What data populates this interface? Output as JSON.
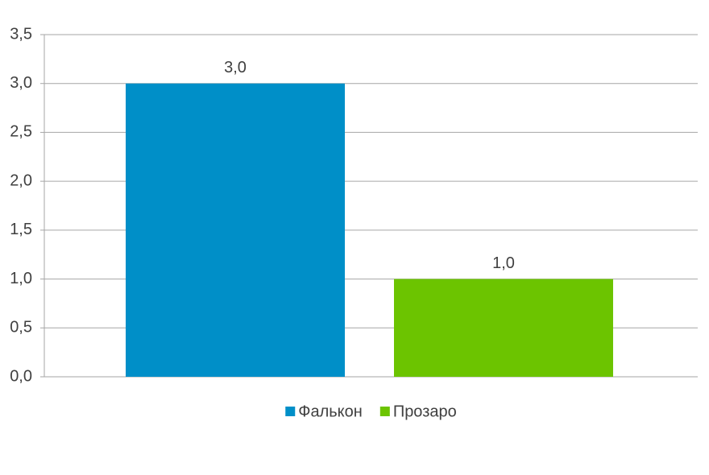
{
  "chart_data": {
    "type": "bar",
    "categories": [
      null
    ],
    "series": [
      {
        "name": "Фалькон",
        "color": "#008fc8",
        "values": [
          3.0
        ],
        "value_labels": [
          "3,0"
        ]
      },
      {
        "name": "Прозаро",
        "color": "#6cc400",
        "values": [
          1.0
        ],
        "value_labels": [
          "1,0"
        ]
      }
    ],
    "ylim": [
      0,
      3.5
    ],
    "yticks": [
      {
        "value": 0,
        "label": "0,0"
      },
      {
        "value": 0.5,
        "label": "0,5"
      },
      {
        "value": 1,
        "label": "1,0"
      },
      {
        "value": 1.5,
        "label": "1,5"
      },
      {
        "value": 2,
        "label": "2,0"
      },
      {
        "value": 2.5,
        "label": "2,5"
      },
      {
        "value": 3,
        "label": "3,0"
      },
      {
        "value": 3.5,
        "label": "3,5"
      }
    ],
    "grid": true,
    "legend": "bottom"
  }
}
